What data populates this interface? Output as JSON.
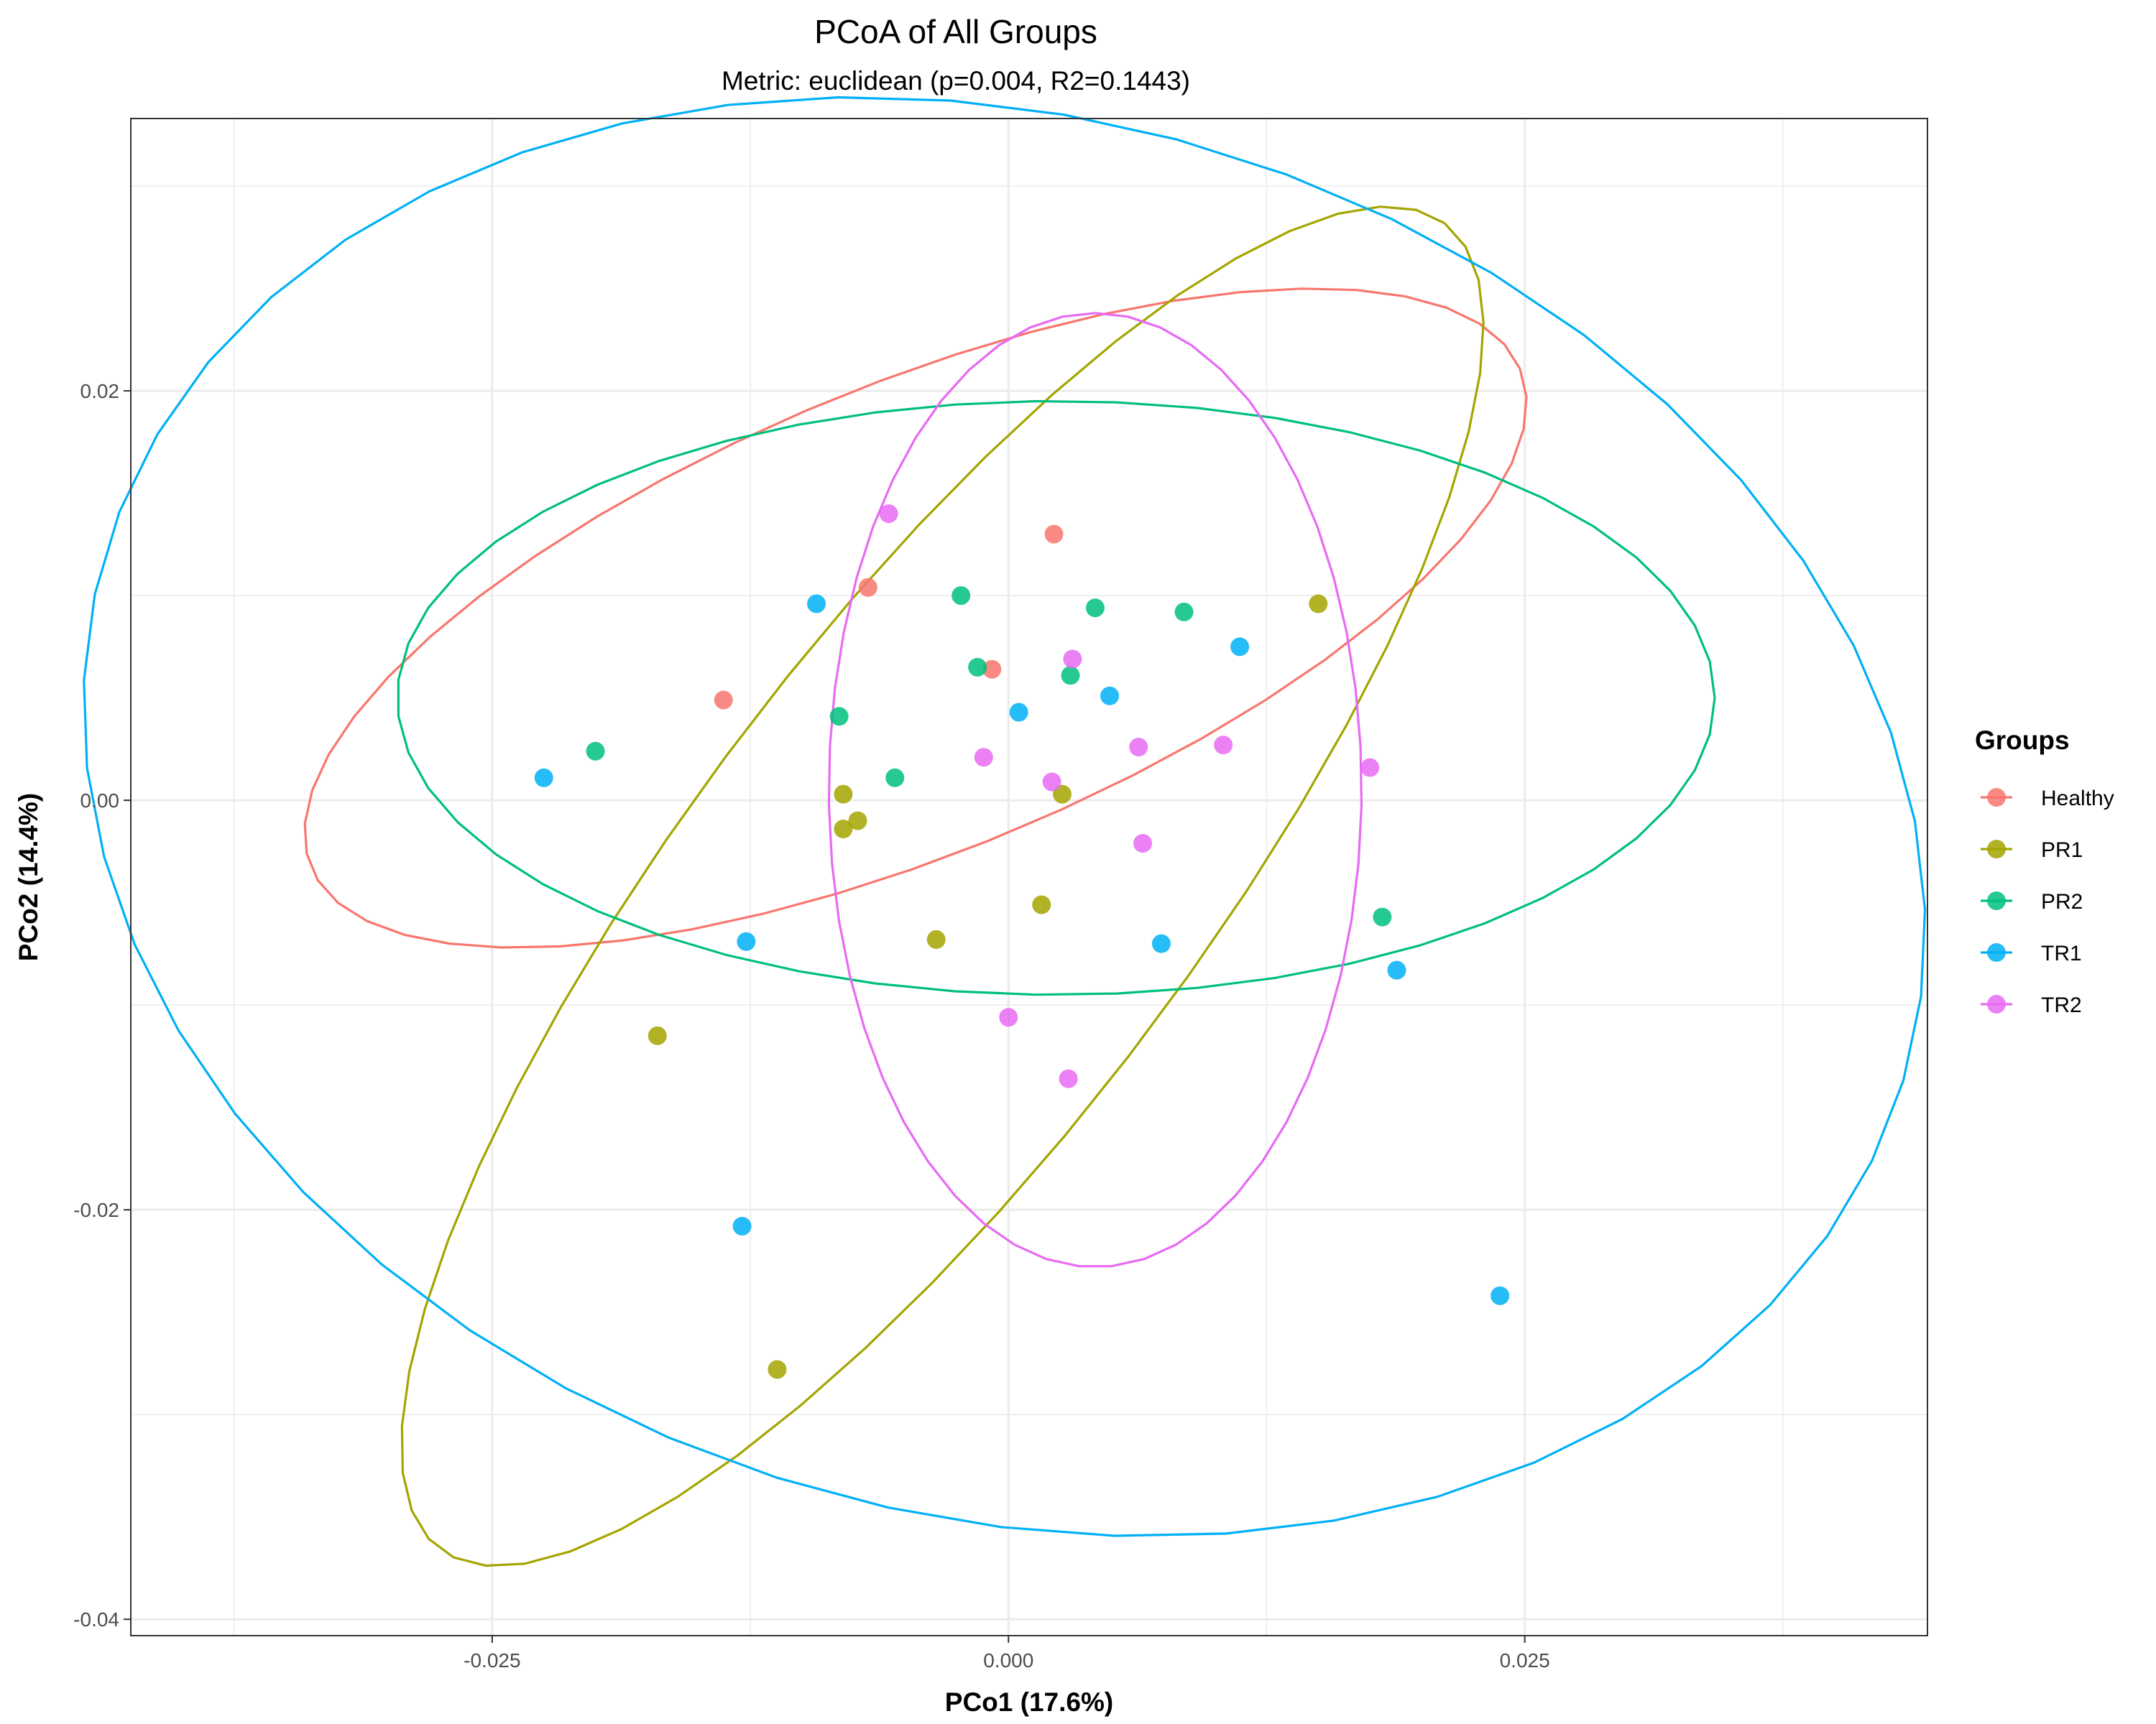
{
  "chart_data": {
    "type": "scatter",
    "title": "PCoA of All Groups",
    "subtitle": "Metric: euclidean (p=0.004, R2=0.1443)",
    "xlabel": "PCo1 (17.6%)",
    "ylabel": "PCo2 (14.4%)",
    "xlim": [
      -0.0425,
      0.0445
    ],
    "ylim": [
      -0.0408,
      0.0333
    ],
    "x_ticks": [
      -0.025,
      0.0,
      0.025
    ],
    "x_tick_labels": [
      "-0.025",
      "0.000",
      "0.025"
    ],
    "y_ticks": [
      -0.04,
      -0.02,
      0.0,
      0.02
    ],
    "y_tick_labels": [
      "-0.04",
      "-0.02",
      "0.00",
      "0.02"
    ],
    "grid": true,
    "legend": {
      "title": "Groups",
      "position": "right"
    },
    "series": [
      {
        "name": "Healthy",
        "color": "#F8766D",
        "points": [
          [
            0.0022,
            0.013
          ],
          [
            -0.0068,
            0.0104
          ],
          [
            -0.0008,
            0.0064
          ],
          [
            -0.0138,
            0.0049
          ]
        ],
        "ellipse": {
          "cx": -0.0045,
          "cy": 0.0089,
          "a": 0.0317,
          "b": 0.0114,
          "angle_deg": 22.6
        }
      },
      {
        "name": "PR1",
        "color": "#A3A500",
        "points": [
          [
            0.015,
            0.0096
          ],
          [
            -0.008,
            0.0003
          ],
          [
            -0.0073,
            -0.001
          ],
          [
            -0.008,
            -0.0014
          ],
          [
            0.0026,
            0.0003
          ],
          [
            0.0016,
            -0.0051
          ],
          [
            -0.0035,
            -0.0068
          ],
          [
            -0.017,
            -0.0115
          ],
          [
            -0.0112,
            -0.0278
          ]
        ],
        "ellipse": {
          "cx": -0.0032,
          "cy": -0.0042,
          "a": 0.0405,
          "b": 0.0122,
          "angle_deg": 53.1
        }
      },
      {
        "name": "PR2",
        "color": "#00BF7D",
        "points": [
          [
            -0.0023,
            0.01
          ],
          [
            0.0042,
            0.0094
          ],
          [
            0.0085,
            0.0092
          ],
          [
            -0.0015,
            0.0065
          ],
          [
            0.003,
            0.0061
          ],
          [
            -0.0082,
            0.0041
          ],
          [
            -0.02,
            0.0024
          ],
          [
            -0.0055,
            0.0011
          ],
          [
            0.0181,
            -0.0057
          ]
        ],
        "ellipse": {
          "cx": 0.0023,
          "cy": 0.005,
          "a": 0.0319,
          "b": 0.0145,
          "angle_deg": 0
        }
      },
      {
        "name": "TR1",
        "color": "#00B0F6",
        "points": [
          [
            -0.0093,
            0.0096
          ],
          [
            0.0112,
            0.0075
          ],
          [
            0.0049,
            0.0051
          ],
          [
            0.0005,
            0.0043
          ],
          [
            -0.0225,
            0.0011
          ],
          [
            -0.0127,
            -0.0069
          ],
          [
            0.0074,
            -0.007
          ],
          [
            0.0188,
            -0.0083
          ],
          [
            -0.0129,
            -0.0208
          ],
          [
            0.0238,
            -0.0242
          ]
        ],
        "ellipse": {
          "cx": -0.0002,
          "cy": -0.0008,
          "a": 0.0454,
          "b": 0.0341,
          "angle_deg": -16.5
        }
      },
      {
        "name": "TR2",
        "color": "#E76BF3",
        "points": [
          [
            -0.0058,
            0.014
          ],
          [
            0.0031,
            0.0069
          ],
          [
            0.0104,
            0.0027
          ],
          [
            0.0063,
            0.0026
          ],
          [
            -0.0012,
            0.0021
          ],
          [
            0.0175,
            0.0016
          ],
          [
            0.0021,
            0.0009
          ],
          [
            0.0065,
            -0.0021
          ],
          [
            0.0,
            -0.0106
          ],
          [
            0.0029,
            -0.0136
          ]
        ],
        "ellipse": {
          "cx": 0.0042,
          "cy": 0.0005,
          "a": 0.0233,
          "b": 0.0129,
          "angle_deg": 90
        }
      }
    ]
  }
}
